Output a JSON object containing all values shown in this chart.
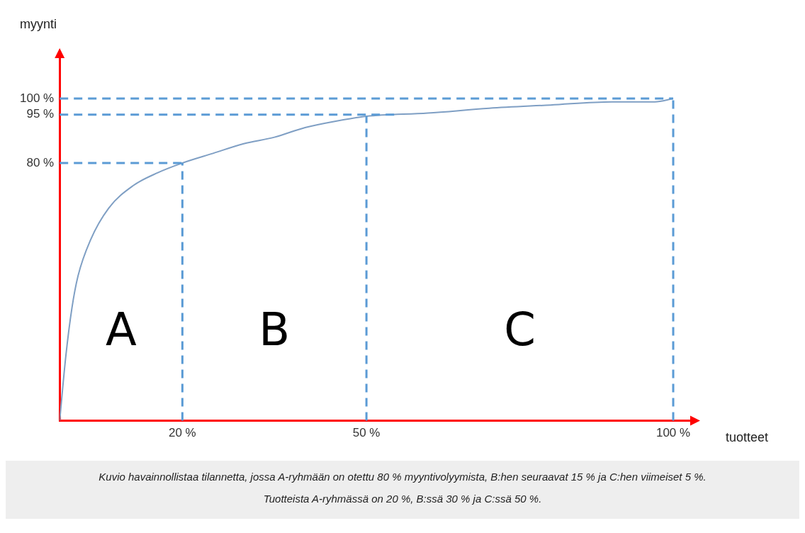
{
  "chart_data": {
    "type": "line",
    "xlabel": "tuotteet",
    "ylabel": "myynti",
    "x": [
      0,
      1,
      2,
      3,
      5,
      8,
      12,
      16,
      20,
      25,
      30,
      35,
      40,
      45,
      50,
      60,
      70,
      80,
      90,
      97,
      100
    ],
    "series": [
      {
        "color": "#7f9fc4",
        "values": [
          0,
          20,
          35,
          45,
          56,
          66,
          73,
          77,
          80,
          83,
          86,
          88,
          91,
          93,
          94.5,
          95.5,
          97,
          98,
          99,
          99,
          100
        ]
      }
    ],
    "xlim": [
      0,
      103
    ],
    "ylim": [
      0,
      113
    ],
    "xticks": [
      {
        "value": 20,
        "label": "20 %"
      },
      {
        "value": 50,
        "label": "50 %"
      },
      {
        "value": 100,
        "label": "100 %"
      }
    ],
    "yticks": [
      {
        "value": 80,
        "label": "80 %"
      },
      {
        "value": 95,
        "label": "95 %"
      },
      {
        "value": 100,
        "label": "100 %"
      }
    ],
    "ref_lines": [
      {
        "axis": "y",
        "value": 80,
        "color": "#5b9bd5",
        "line_style": "dashed"
      },
      {
        "axis": "y",
        "value": 95,
        "color": "#5b9bd5",
        "line_style": "dashed"
      },
      {
        "axis": "y",
        "value": 100,
        "color": "#5b9bd5",
        "line_style": "dashed"
      },
      {
        "axis": "x",
        "value": 20,
        "color": "#5b9bd5",
        "line_style": "dashed"
      },
      {
        "axis": "x",
        "value": 50,
        "color": "#5b9bd5",
        "line_style": "dashed"
      },
      {
        "axis": "x",
        "value": 100,
        "color": "#5b9bd5",
        "line_style": "dashed"
      }
    ],
    "annotations": [
      "A",
      "B",
      "C",
      "Kuvio havainnollistaa tilannetta, jossa A-ryhmään on otettu 80 % myyntivolyymista, B:hen seuraavat 15 % ja C:hen viimeiset 5 %.",
      "Tuotteista A-ryhmässä on 20 %, B:ssä 30 % ja C:ssä 50 %."
    ],
    "grid": false,
    "legend": false,
    "marker": "none",
    "line_style": "solid"
  }
}
